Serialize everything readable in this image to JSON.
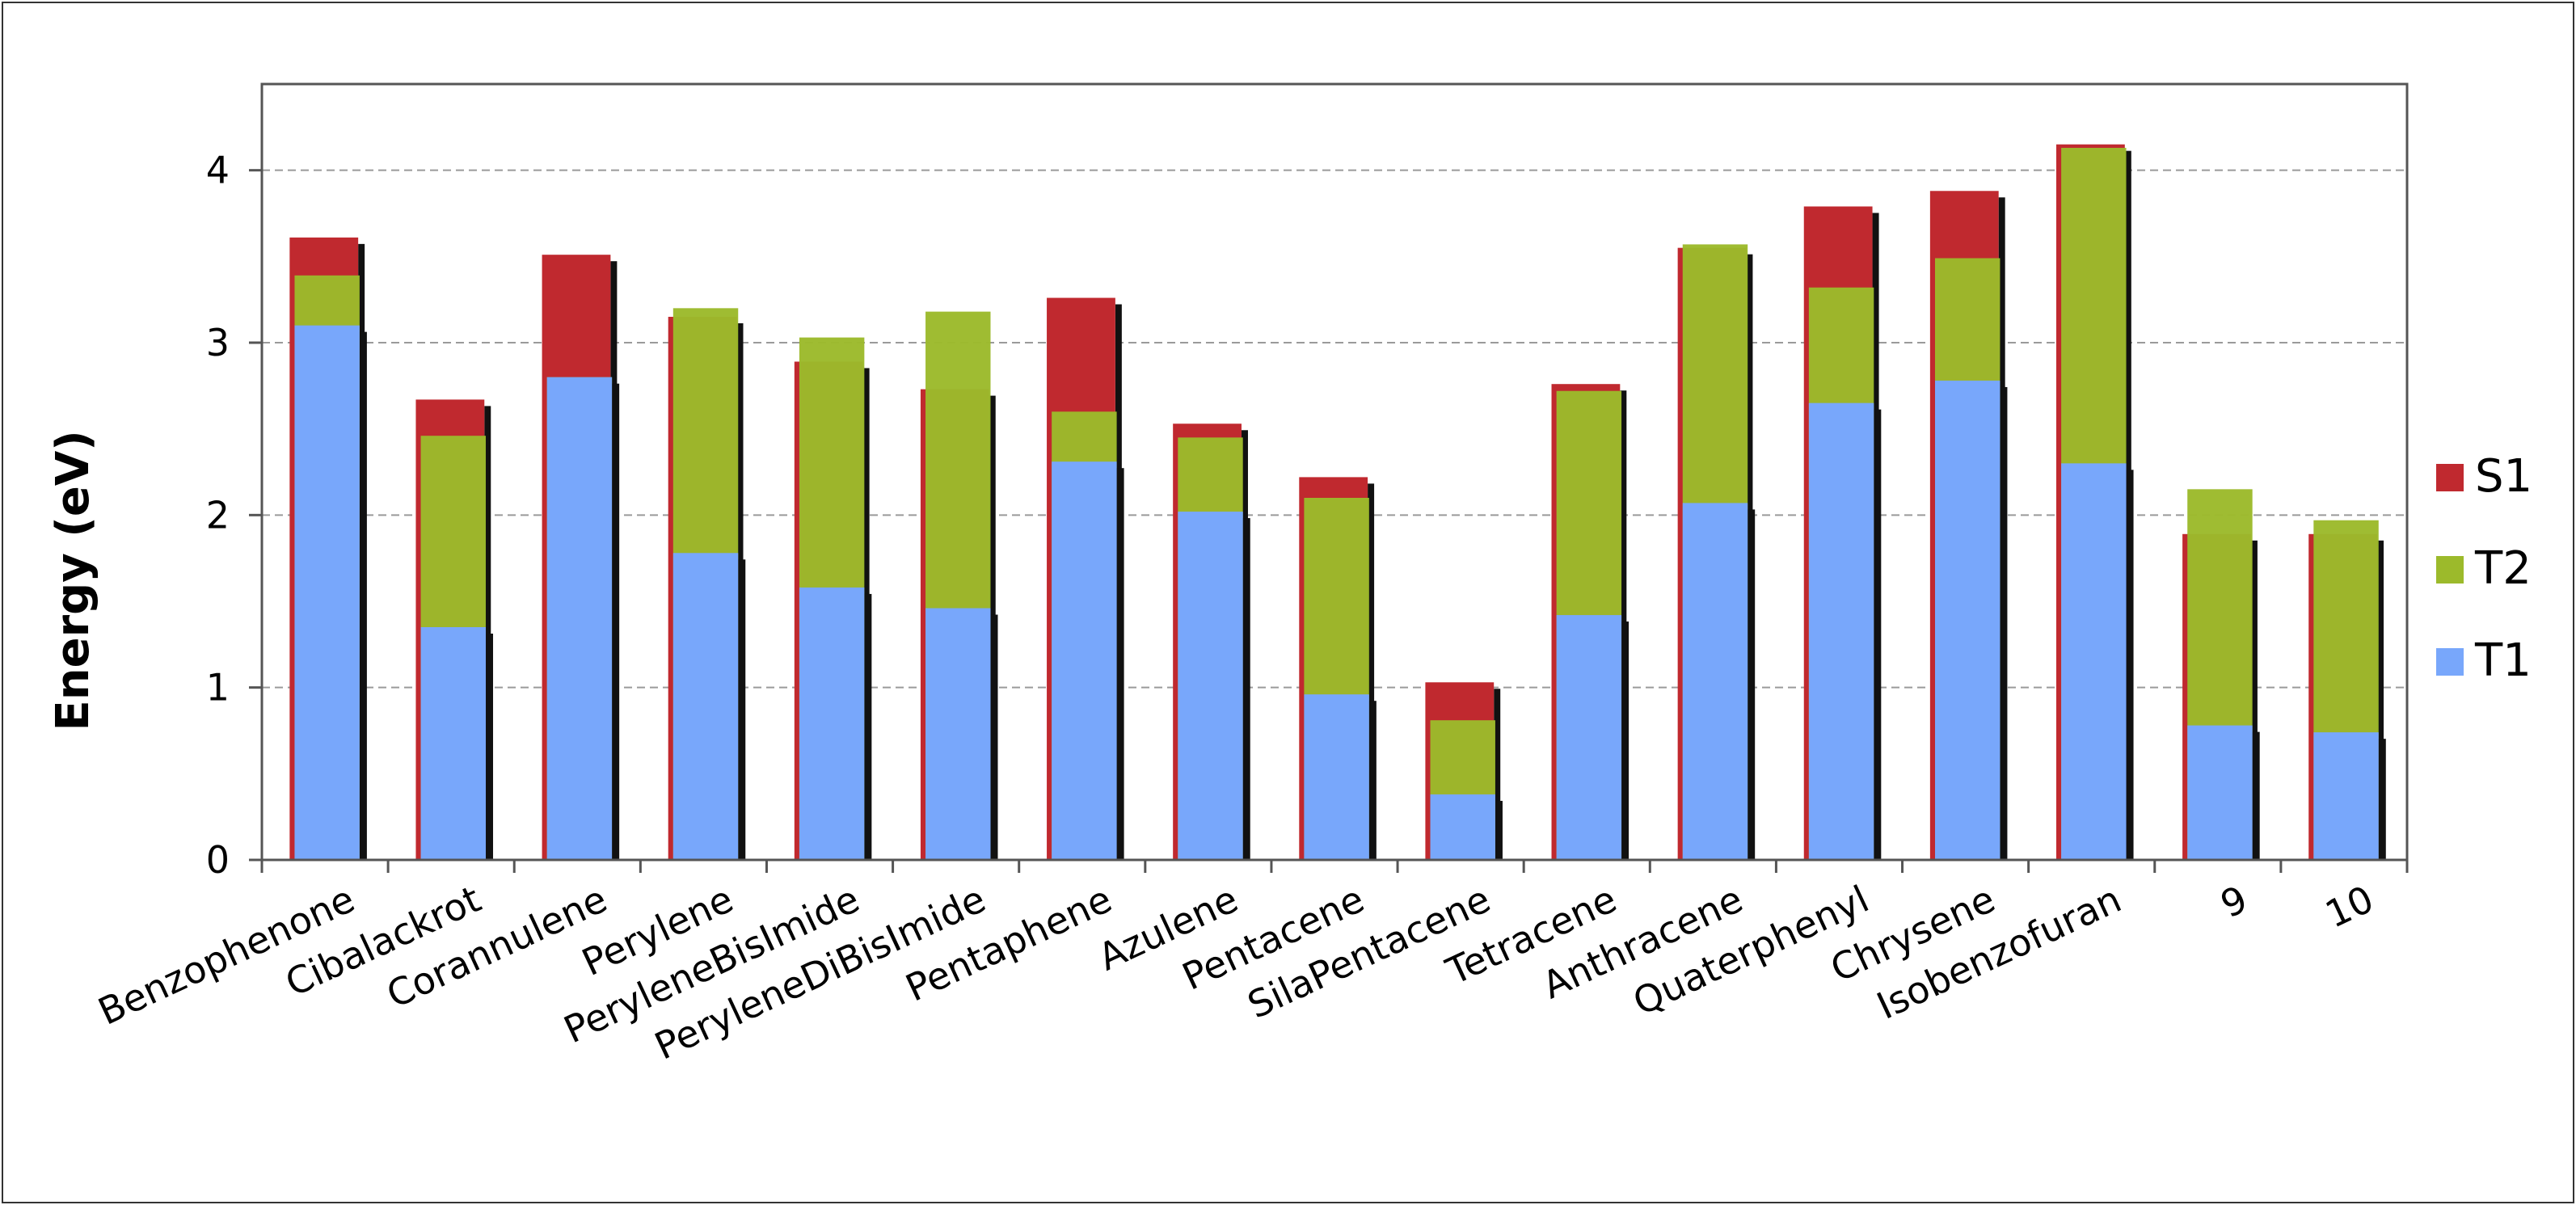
{
  "chart_data": {
    "type": "bar",
    "ylabel": "Energy (eV)",
    "xlabel": "",
    "ylim": [
      0,
      4.5
    ],
    "yticks": [
      0,
      1,
      2,
      3,
      4
    ],
    "grid": true,
    "legend_position": "right",
    "categories": [
      "Benzophenone",
      "Cibalackrot",
      "Corannulene",
      "Perylene",
      "PeryleneBisImide",
      "PeryleneDiBisImide",
      "Pentaphene",
      "Azulene",
      "Pentacene",
      "SilaPentacene",
      "Tetracene",
      "Anthracene",
      "Quaterphenyl",
      "Chrysene",
      "Isobenzofuran",
      "9",
      "10"
    ],
    "series": [
      {
        "name": "S1",
        "color": "#c0292f",
        "values": [
          3.61,
          2.67,
          3.51,
          3.15,
          2.89,
          2.73,
          3.26,
          2.53,
          2.22,
          1.03,
          2.76,
          3.55,
          3.79,
          3.88,
          4.15,
          1.89,
          1.89
        ]
      },
      {
        "name": "T2",
        "color": "#9cba2b",
        "values": [
          3.39,
          2.46,
          2.8,
          3.2,
          3.03,
          3.18,
          2.6,
          2.45,
          2.1,
          0.81,
          2.72,
          3.57,
          3.32,
          3.49,
          4.13,
          2.15,
          1.97
        ]
      },
      {
        "name": "T1",
        "color": "#78a7fb",
        "values": [
          3.1,
          1.35,
          2.8,
          1.78,
          1.58,
          1.46,
          2.31,
          2.02,
          0.96,
          0.38,
          1.42,
          2.07,
          2.65,
          2.78,
          2.3,
          0.78,
          0.74
        ]
      }
    ]
  }
}
